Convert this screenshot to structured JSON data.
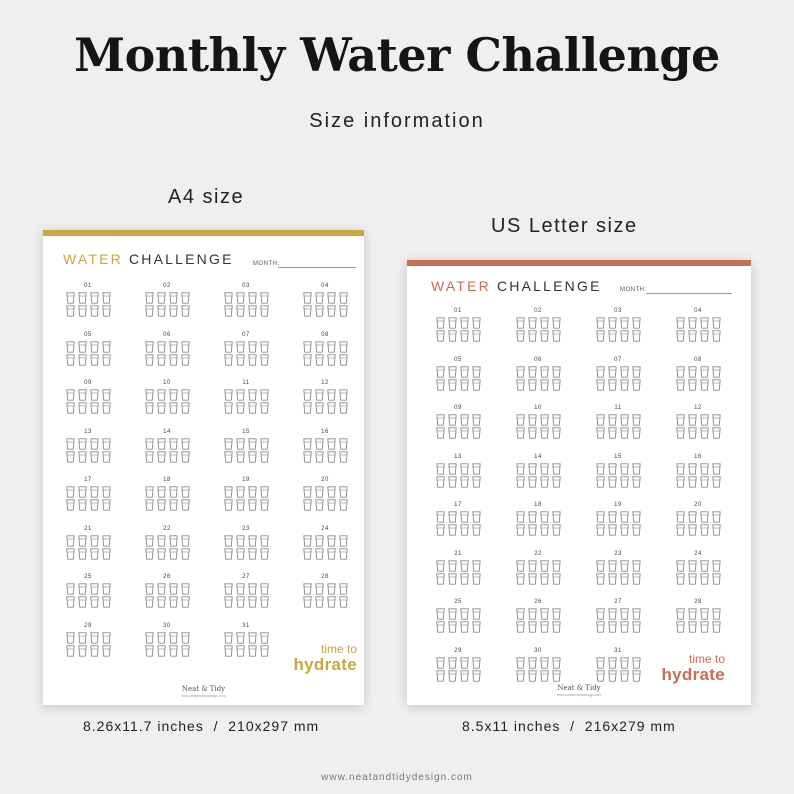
{
  "header": {
    "title": "Monthly Water Challenge",
    "subtitle": "Size information"
  },
  "colors": {
    "a4_accent": "#c9a640",
    "letter_accent": "#c96d57",
    "cup_stroke": "#8a8a8a"
  },
  "a4": {
    "label": "A4 size",
    "dimensions": "8.26x11.7 inches  /  210x297 mm",
    "sheet": {
      "word_water": "WATER",
      "word_challenge": "CHALLENGE",
      "month_label": "MONTH:",
      "days": [
        "01",
        "02",
        "03",
        "04",
        "05",
        "06",
        "07",
        "08",
        "09",
        "10",
        "11",
        "12",
        "13",
        "14",
        "15",
        "16",
        "17",
        "18",
        "19",
        "20",
        "21",
        "22",
        "23",
        "24",
        "25",
        "26",
        "27",
        "28",
        "29",
        "30",
        "31"
      ],
      "cups_per_day": 8,
      "note_line1": "time to",
      "note_line2": "hydrate",
      "brand": "Neat & Tidy",
      "brand_url": "www.neatandtidydesign.com"
    }
  },
  "letter": {
    "label": "US Letter size",
    "dimensions": "8.5x11 inches  /  216x279 mm",
    "sheet": {
      "word_water": "WATER",
      "word_challenge": "CHALLENGE",
      "month_label": "MONTH:",
      "days": [
        "01",
        "02",
        "03",
        "04",
        "05",
        "06",
        "07",
        "08",
        "09",
        "10",
        "11",
        "12",
        "13",
        "14",
        "15",
        "16",
        "17",
        "18",
        "19",
        "20",
        "21",
        "22",
        "23",
        "24",
        "25",
        "26",
        "27",
        "28",
        "29",
        "30",
        "31"
      ],
      "cups_per_day": 8,
      "note_line1": "time to",
      "note_line2": "hydrate",
      "brand": "Neat & Tidy",
      "brand_url": "www.neatandtidydesign.com"
    }
  },
  "footer": {
    "url": "www.neatandtidydesign.com"
  }
}
